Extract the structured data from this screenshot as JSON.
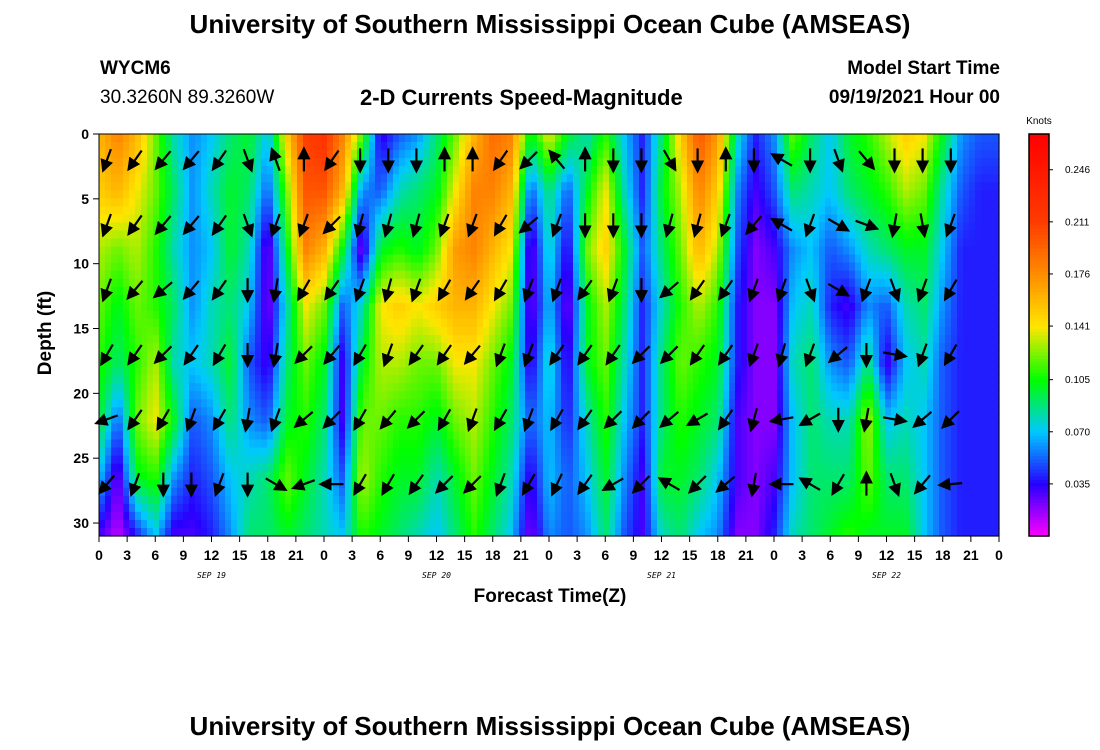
{
  "header": {
    "title": "University of Southern Mississippi Ocean Cube (AMSEAS)",
    "station_id": "WYCM6",
    "station_coords": "30.3260N  89.3260W",
    "subtitle": "2-D Currents Speed-Magnitude",
    "model_start_label": "Model Start Time",
    "model_start_value": "09/19/2021 Hour 00"
  },
  "footer": {
    "title": "University of Southern Mississippi Ocean Cube (AMSEAS)"
  },
  "colors": {
    "arrow": "#000000",
    "scale_low": "#ff00ff",
    "scale_high": "#ff0000"
  },
  "chart_data": {
    "type": "heatmap",
    "xlabel": "Forecast Time(Z)",
    "ylabel": "Depth (ft)",
    "x_tick_labels": [
      "0",
      "3",
      "6",
      "9",
      "12",
      "15",
      "18",
      "21",
      "0",
      "3",
      "6",
      "9",
      "12",
      "15",
      "18",
      "21",
      "0",
      "3",
      "6",
      "9",
      "12",
      "15",
      "18",
      "21",
      "0",
      "3",
      "6",
      "9",
      "12",
      "15",
      "18",
      "21",
      "0"
    ],
    "date_labels": [
      {
        "text": "SEP 19",
        "hour": 12
      },
      {
        "text": "SEP 20",
        "hour": 36
      },
      {
        "text": "SEP 21",
        "hour": 60
      },
      {
        "text": "SEP 22",
        "hour": 84
      }
    ],
    "xlim_hours": [
      0,
      96
    ],
    "ylim_depth_ft": [
      0,
      31
    ],
    "y_ticks": [
      0,
      5,
      10,
      15,
      20,
      25,
      30
    ],
    "colorbar": {
      "title": "Knots",
      "range": [
        0.0,
        0.27
      ],
      "ticks": [
        "0.246",
        "0.211",
        "0.176",
        "0.141",
        "0.105",
        "0.070",
        "0.035"
      ],
      "tick_values": [
        0.246,
        0.211,
        0.176,
        0.141,
        0.105,
        0.07,
        0.035
      ]
    },
    "speed_columns": [
      {
        "hour": 0,
        "v": [
          0.16,
          0.15,
          0.13,
          0.12,
          0.11,
          0.1,
          0.07,
          0.03
        ]
      },
      {
        "hour": 2,
        "v": [
          0.18,
          0.16,
          0.12,
          0.1,
          0.09,
          0.05,
          0.02,
          0.01
        ]
      },
      {
        "hour": 4,
        "v": [
          0.16,
          0.14,
          0.13,
          0.12,
          0.11,
          0.12,
          0.1,
          0.04
        ]
      },
      {
        "hour": 6,
        "v": [
          0.12,
          0.12,
          0.11,
          0.11,
          0.13,
          0.14,
          0.11,
          0.07
        ]
      },
      {
        "hour": 8,
        "v": [
          0.08,
          0.09,
          0.08,
          0.09,
          0.08,
          0.1,
          0.06,
          0.03
        ]
      },
      {
        "hour": 10,
        "v": [
          0.06,
          0.06,
          0.06,
          0.06,
          0.07,
          0.05,
          0.04,
          0.03
        ]
      },
      {
        "hour": 12,
        "v": [
          0.07,
          0.08,
          0.07,
          0.08,
          0.08,
          0.06,
          0.05,
          0.04
        ]
      },
      {
        "hour": 14,
        "v": [
          0.09,
          0.1,
          0.1,
          0.09,
          0.1,
          0.09,
          0.07,
          0.06
        ]
      },
      {
        "hour": 16,
        "v": [
          0.1,
          0.09,
          0.08,
          0.07,
          0.05,
          0.06,
          0.08,
          0.09
        ]
      },
      {
        "hour": 18,
        "v": [
          0.07,
          0.05,
          0.02,
          0.02,
          0.03,
          0.05,
          0.09,
          0.09
        ]
      },
      {
        "hour": 20,
        "v": [
          0.15,
          0.12,
          0.1,
          0.08,
          0.09,
          0.1,
          0.12,
          0.1
        ]
      },
      {
        "hour": 22,
        "v": [
          0.21,
          0.2,
          0.18,
          0.14,
          0.12,
          0.11,
          0.1,
          0.09
        ]
      },
      {
        "hour": 24,
        "v": [
          0.22,
          0.2,
          0.16,
          0.12,
          0.1,
          0.09,
          0.08,
          0.08
        ]
      },
      {
        "hour": 26,
        "v": [
          0.18,
          0.16,
          0.1,
          0.05,
          0.03,
          0.03,
          0.05,
          0.07
        ]
      },
      {
        "hour": 28,
        "v": [
          0.12,
          0.06,
          0.02,
          0.08,
          0.1,
          0.12,
          0.13,
          0.11
        ]
      },
      {
        "hour": 30,
        "v": [
          0.03,
          0.05,
          0.1,
          0.14,
          0.13,
          0.12,
          0.11,
          0.1
        ]
      },
      {
        "hour": 32,
        "v": [
          0.05,
          0.08,
          0.11,
          0.15,
          0.13,
          0.11,
          0.1,
          0.09
        ]
      },
      {
        "hour": 34,
        "v": [
          0.06,
          0.09,
          0.1,
          0.14,
          0.12,
          0.11,
          0.1,
          0.08
        ]
      },
      {
        "hour": 36,
        "v": [
          0.09,
          0.1,
          0.12,
          0.15,
          0.12,
          0.1,
          0.08,
          0.07
        ]
      },
      {
        "hour": 38,
        "v": [
          0.12,
          0.14,
          0.17,
          0.16,
          0.14,
          0.12,
          0.1,
          0.09
        ]
      },
      {
        "hour": 40,
        "v": [
          0.16,
          0.18,
          0.18,
          0.16,
          0.14,
          0.13,
          0.12,
          0.11
        ]
      },
      {
        "hour": 42,
        "v": [
          0.19,
          0.18,
          0.16,
          0.14,
          0.12,
          0.11,
          0.1,
          0.09
        ]
      },
      {
        "hour": 44,
        "v": [
          0.18,
          0.16,
          0.14,
          0.12,
          0.1,
          0.09,
          0.08,
          0.07
        ]
      },
      {
        "hour": 46,
        "v": [
          0.1,
          0.05,
          0.02,
          0.02,
          0.03,
          0.05,
          0.03,
          0.02
        ]
      },
      {
        "hour": 48,
        "v": [
          0.14,
          0.09,
          0.08,
          0.07,
          0.08,
          0.07,
          0.07,
          0.06
        ]
      },
      {
        "hour": 50,
        "v": [
          0.1,
          0.05,
          0.03,
          0.02,
          0.03,
          0.04,
          0.05,
          0.05
        ]
      },
      {
        "hour": 52,
        "v": [
          0.08,
          0.1,
          0.12,
          0.1,
          0.1,
          0.08,
          0.07,
          0.06
        ]
      },
      {
        "hour": 54,
        "v": [
          0.11,
          0.14,
          0.15,
          0.13,
          0.12,
          0.11,
          0.1,
          0.09
        ]
      },
      {
        "hour": 56,
        "v": [
          0.07,
          0.08,
          0.1,
          0.09,
          0.08,
          0.07,
          0.06,
          0.05
        ]
      },
      {
        "hour": 58,
        "v": [
          0.04,
          0.04,
          0.05,
          0.04,
          0.04,
          0.04,
          0.03,
          0.03
        ]
      },
      {
        "hour": 60,
        "v": [
          0.09,
          0.1,
          0.09,
          0.08,
          0.09,
          0.09,
          0.1,
          0.08
        ]
      },
      {
        "hour": 62,
        "v": [
          0.15,
          0.13,
          0.12,
          0.11,
          0.12,
          0.11,
          0.1,
          0.09
        ]
      },
      {
        "hour": 64,
        "v": [
          0.2,
          0.18,
          0.16,
          0.13,
          0.11,
          0.1,
          0.09,
          0.07
        ]
      },
      {
        "hour": 66,
        "v": [
          0.17,
          0.15,
          0.13,
          0.11,
          0.1,
          0.09,
          0.07,
          0.06
        ]
      },
      {
        "hour": 68,
        "v": [
          0.08,
          0.06,
          0.05,
          0.04,
          0.04,
          0.03,
          0.03,
          0.02
        ]
      },
      {
        "hour": 70,
        "v": [
          0.04,
          0.03,
          0.02,
          0.02,
          0.02,
          0.02,
          0.02,
          0.02
        ]
      },
      {
        "hour": 72,
        "v": [
          0.06,
          0.05,
          0.03,
          0.02,
          0.02,
          0.02,
          0.03,
          0.04
        ]
      },
      {
        "hour": 74,
        "v": [
          0.12,
          0.09,
          0.06,
          0.07,
          0.08,
          0.07,
          0.07,
          0.08
        ]
      },
      {
        "hour": 76,
        "v": [
          0.09,
          0.08,
          0.07,
          0.08,
          0.09,
          0.09,
          0.09,
          0.09
        ]
      },
      {
        "hour": 78,
        "v": [
          0.07,
          0.07,
          0.05,
          0.04,
          0.06,
          0.08,
          0.09,
          0.1
        ]
      },
      {
        "hour": 80,
        "v": [
          0.1,
          0.09,
          0.06,
          0.03,
          0.05,
          0.08,
          0.09,
          0.11
        ]
      },
      {
        "hour": 82,
        "v": [
          0.11,
          0.1,
          0.08,
          0.06,
          0.09,
          0.13,
          0.12,
          0.1
        ]
      },
      {
        "hour": 84,
        "v": [
          0.13,
          0.11,
          0.09,
          0.05,
          0.03,
          0.07,
          0.09,
          0.1
        ]
      },
      {
        "hour": 86,
        "v": [
          0.15,
          0.13,
          0.1,
          0.08,
          0.07,
          0.08,
          0.09,
          0.1
        ]
      },
      {
        "hour": 88,
        "v": [
          0.14,
          0.12,
          0.1,
          0.09,
          0.08,
          0.07,
          0.07,
          0.07
        ]
      },
      {
        "hour": 90,
        "v": [
          0.1,
          0.08,
          0.07,
          0.06,
          0.05,
          0.05,
          0.05,
          0.05
        ]
      },
      {
        "hour": 92,
        "v": [
          0.06,
          0.05,
          0.04,
          0.04,
          0.04,
          0.04,
          0.04,
          0.04
        ]
      },
      {
        "hour": 94,
        "v": [
          0.05,
          0.04,
          0.04,
          0.04,
          0.04,
          0.04,
          0.04,
          0.04
        ]
      },
      {
        "hour": 96,
        "v": [
          0.05,
          0.04,
          0.04,
          0.04,
          0.04,
          0.04,
          0.04,
          0.04
        ]
      }
    ],
    "speed_depths_ft": [
      0,
      4.4,
      8.9,
      13.3,
      17.7,
      22.1,
      26.6,
      31
    ],
    "current_vectors_cols_hours": [
      0,
      3,
      6,
      9,
      12,
      15,
      18,
      21,
      24,
      27,
      30,
      33,
      36,
      39,
      42,
      45,
      48,
      51,
      54,
      57,
      60,
      63,
      66,
      69,
      72,
      75,
      78,
      81,
      84,
      87,
      90
    ],
    "current_vectors_rows_depth_ft": [
      2,
      7,
      12,
      17,
      22,
      27
    ],
    "current_vectors_dir_deg": [
      [
        200,
        215,
        220,
        220,
        215,
        160,
        340,
        0,
        215,
        180,
        180,
        180,
        0,
        0,
        215,
        225,
        320,
        0,
        180,
        180,
        150,
        180,
        0,
        180,
        300,
        180,
        160,
        140,
        180,
        180,
        180
      ],
      [
        200,
        215,
        220,
        220,
        215,
        160,
        200,
        200,
        225,
        195,
        195,
        195,
        200,
        200,
        210,
        230,
        200,
        180,
        180,
        180,
        195,
        195,
        200,
        220,
        300,
        200,
        120,
        110,
        190,
        170,
        200
      ],
      [
        200,
        220,
        230,
        220,
        215,
        180,
        190,
        210,
        215,
        200,
        195,
        200,
        210,
        215,
        210,
        200,
        200,
        215,
        200,
        180,
        230,
        215,
        215,
        200,
        200,
        160,
        120,
        200,
        160,
        200,
        210
      ],
      [
        210,
        215,
        225,
        215,
        210,
        180,
        190,
        225,
        220,
        210,
        200,
        215,
        215,
        220,
        200,
        200,
        215,
        215,
        215,
        225,
        225,
        215,
        215,
        200,
        195,
        200,
        230,
        180,
        100,
        200,
        210
      ],
      [
        250,
        215,
        210,
        200,
        210,
        190,
        200,
        230,
        225,
        210,
        220,
        225,
        210,
        200,
        210,
        200,
        210,
        215,
        225,
        225,
        230,
        240,
        215,
        195,
        260,
        240,
        180,
        190,
        100,
        230,
        225
      ],
      [
        220,
        200,
        180,
        180,
        200,
        180,
        120,
        250,
        270,
        210,
        210,
        215,
        225,
        225,
        200,
        210,
        205,
        215,
        240,
        225,
        300,
        225,
        230,
        190,
        270,
        300,
        210,
        0,
        160,
        220,
        265
      ]
    ]
  }
}
